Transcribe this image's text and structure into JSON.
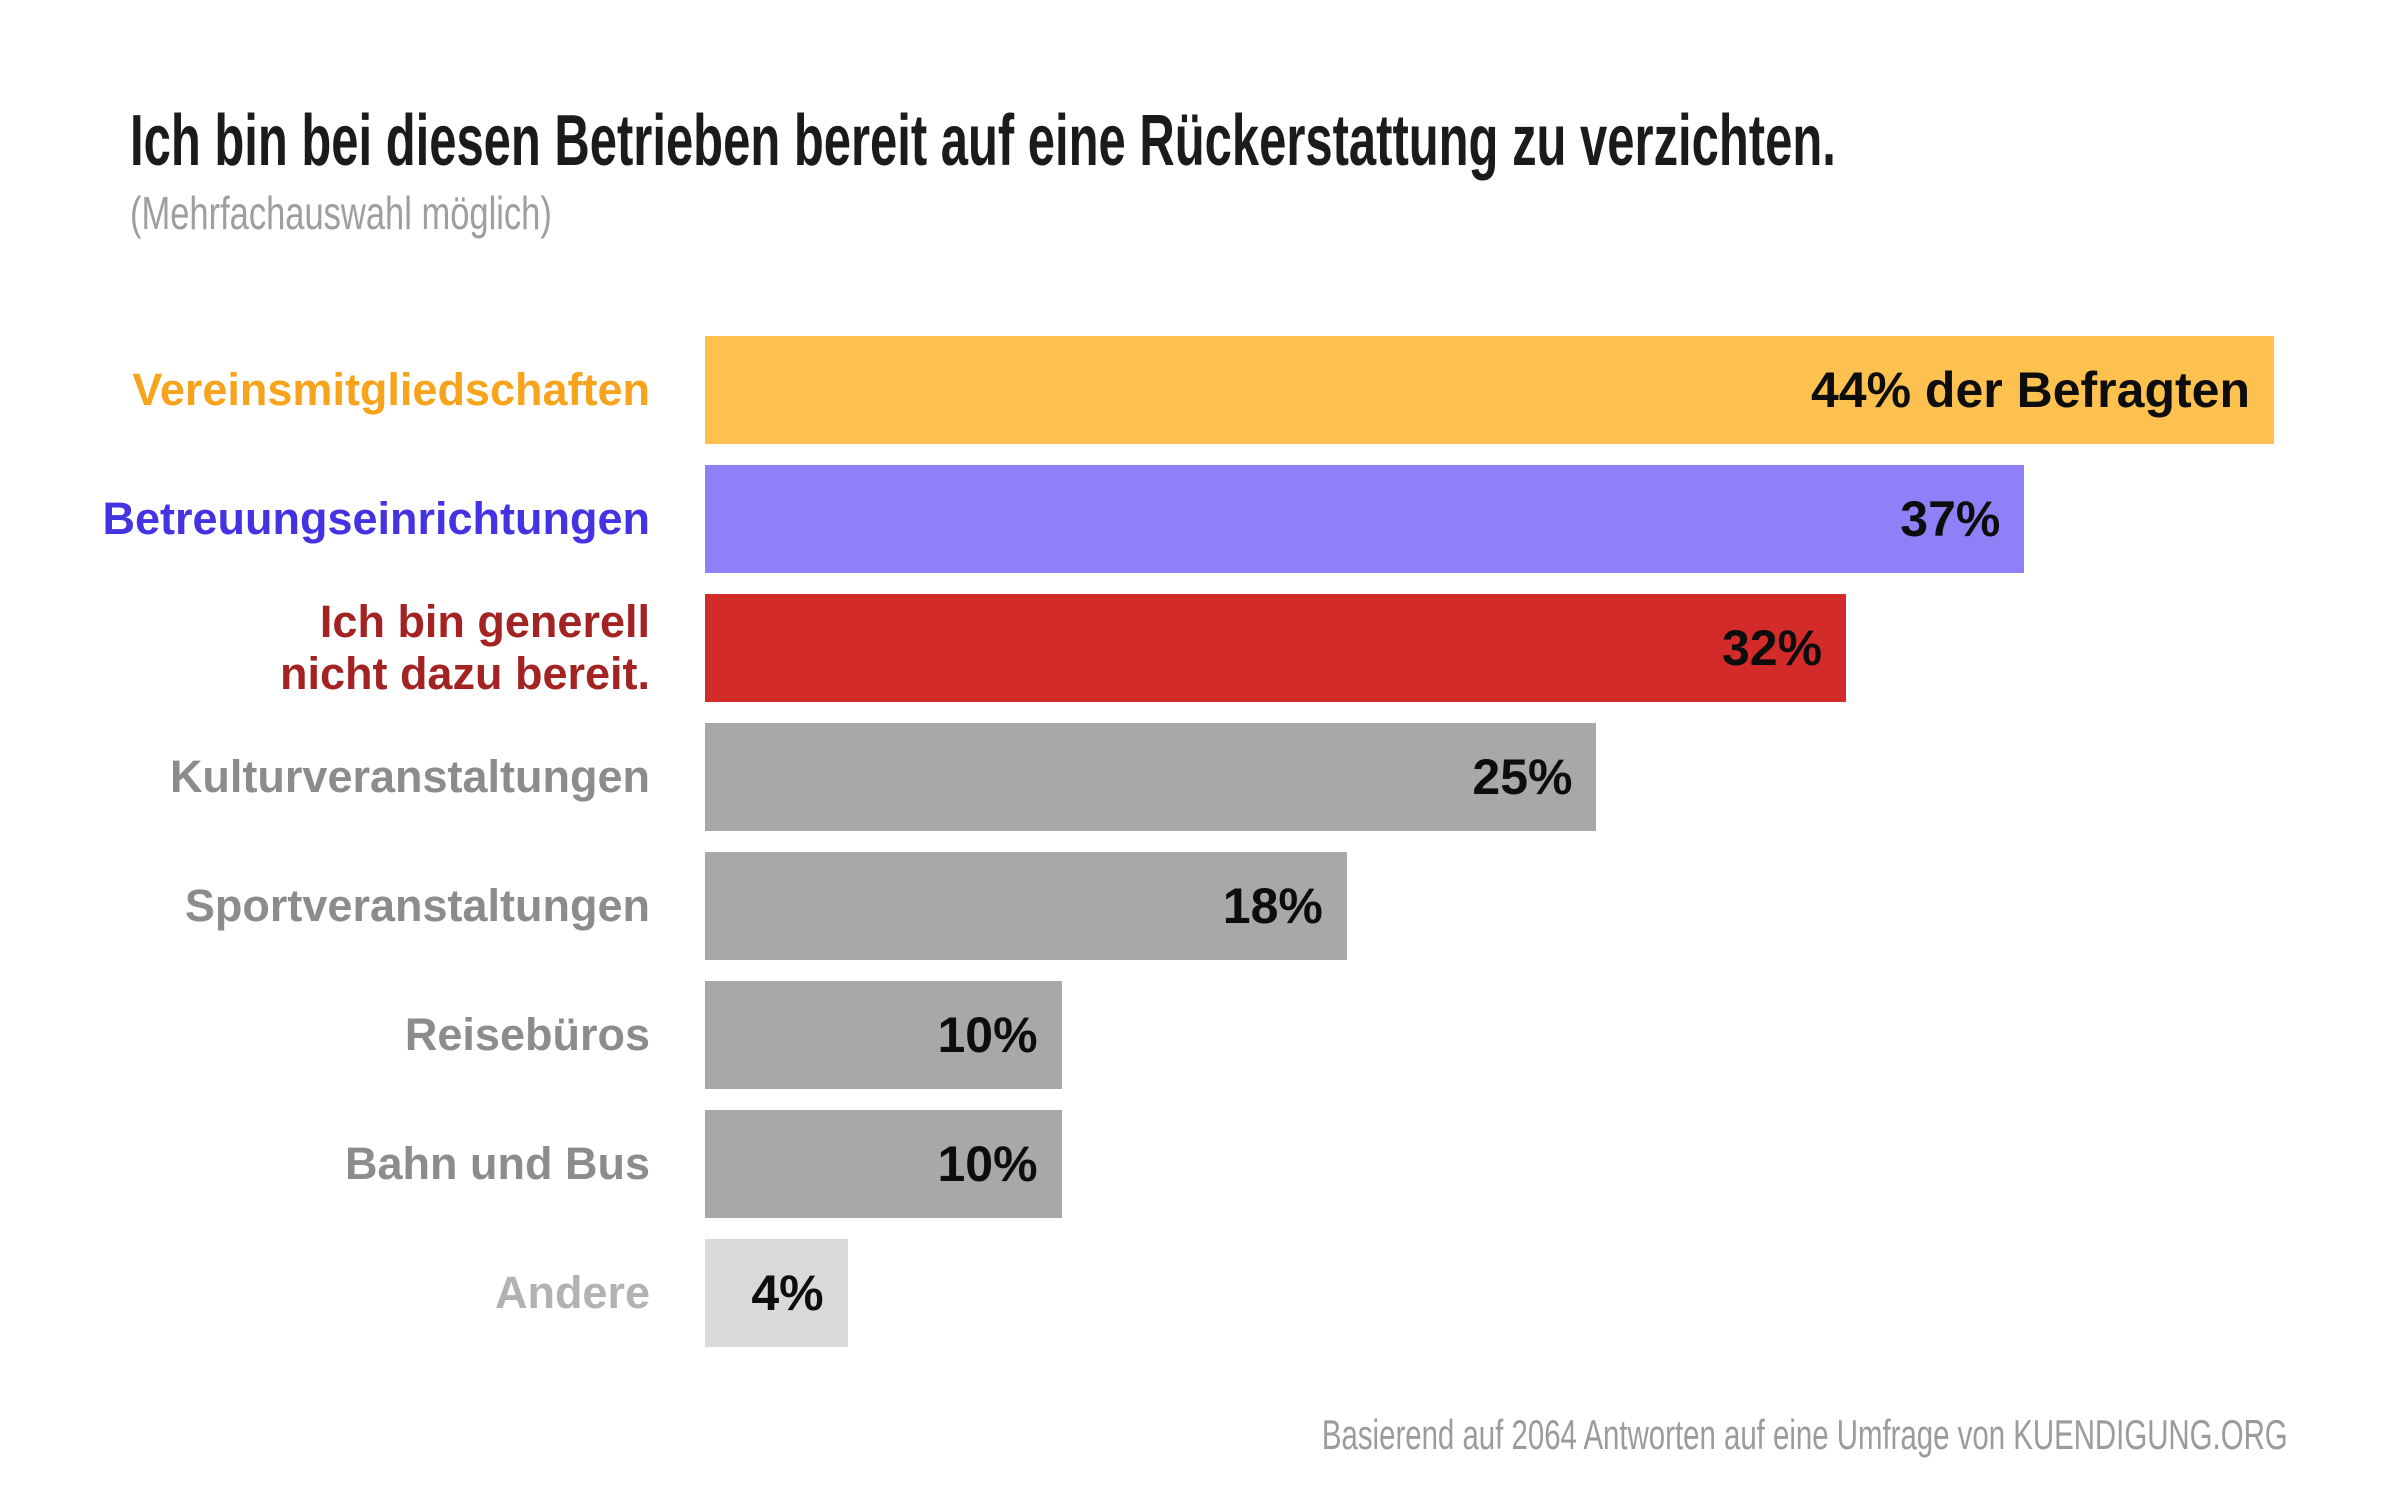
{
  "page": {
    "title": "Ich bin bei diesen Betrieben bereit auf eine Rückerstattung zu verzichten.",
    "subtitle": "(Mehrfachauswahl möglich)",
    "footer": "Basierend auf 2064 Antworten auf eine Umfrage von KUENDIGUNG.ORG"
  },
  "colors": {
    "background": "#ffffff",
    "title_text": "#1b1b1b",
    "subtitle_text": "#9e9e9e",
    "footer_text": "#9b9b9b",
    "value_text": "#0d0d0d",
    "orange_bar": "#fdc14f",
    "orange_label": "#f7a41c",
    "purple_bar": "#8e81f8",
    "purple_label": "#4433e3",
    "red_bar": "#d32a2a",
    "red_label": "#a32323",
    "gray_bar": "#a8a8a8",
    "gray_label": "#8c8c8c",
    "lightgray_bar": "#d9d9d9",
    "lightgray_label": "#b2b2b2"
  },
  "chart_data": {
    "type": "bar",
    "orientation": "horizontal",
    "title": "Ich bin bei diesen Betrieben bereit auf eine Rückerstattung zu verzichten.",
    "subtitle": "(Mehrfachauswahl möglich)",
    "source": "Basierend auf 2064 Antworten auf eine Umfrage von KUENDIGUNG.ORG",
    "unit": "%",
    "x_max": 44,
    "grid": false,
    "legend": false,
    "value_labels_inside_bars": true,
    "categories": [
      "Vereinsmitgliedschaften",
      "Betreuungseinrichtungen",
      "Ich bin generell nicht dazu bereit.",
      "Kulturveranstaltungen",
      "Sportveranstaltungen",
      "Reisebüros",
      "Bahn und Bus",
      "Andere"
    ],
    "values": [
      44,
      37,
      32,
      25,
      18,
      10,
      10,
      4
    ],
    "bars": [
      {
        "label": "Vereinsmitgliedschaften",
        "value": 44,
        "value_label": "44% der Befragten",
        "bar_color": "#fdc14f",
        "label_color": "#f7a41c"
      },
      {
        "label": "Betreuungseinrichtungen",
        "value": 37,
        "value_label": "37%",
        "bar_color": "#8e81f8",
        "label_color": "#4433e3"
      },
      {
        "label": "Ich bin generell nicht dazu bereit.",
        "label_lines": [
          "Ich bin generell",
          "nicht dazu bereit."
        ],
        "value": 32,
        "value_label": "32%",
        "bar_color": "#d32a2a",
        "label_color": "#a32323"
      },
      {
        "label": "Kulturveranstaltungen",
        "value": 25,
        "value_label": "25%",
        "bar_color": "#a8a8a8",
        "label_color": "#8c8c8c"
      },
      {
        "label": "Sportveranstaltungen",
        "value": 18,
        "value_label": "18%",
        "bar_color": "#a8a8a8",
        "label_color": "#8c8c8c"
      },
      {
        "label": "Reisebüros",
        "value": 10,
        "value_label": "10%",
        "bar_color": "#a8a8a8",
        "label_color": "#8c8c8c"
      },
      {
        "label": "Bahn und Bus",
        "value": 10,
        "value_label": "10%",
        "bar_color": "#a8a8a8",
        "label_color": "#8c8c8c"
      },
      {
        "label": "Andere",
        "value": 4,
        "value_label": "4%",
        "bar_color": "#d9d9d9",
        "label_color": "#b2b2b2"
      }
    ]
  }
}
